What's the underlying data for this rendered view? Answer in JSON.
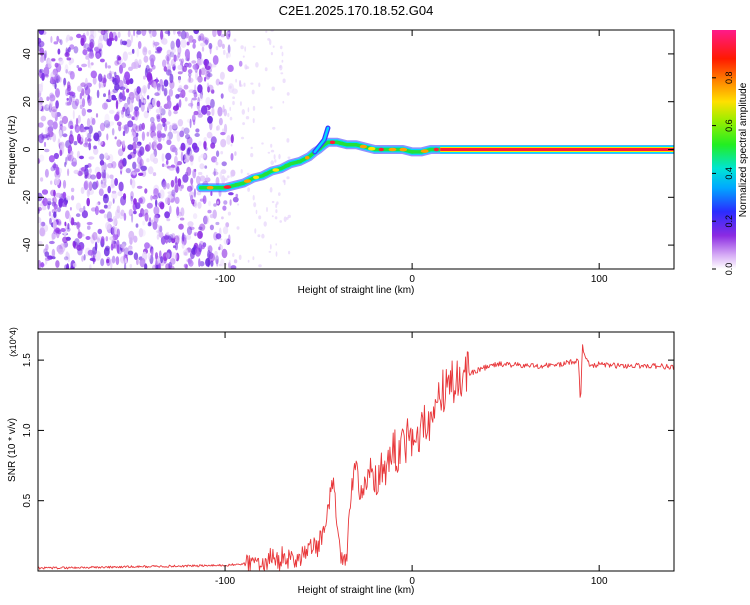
{
  "title": "C2E1.2025.170.18.52.G04",
  "colors": {
    "series": "#e8373a",
    "spectrogram_noise": "#7a2fe6",
    "axis": "#000000"
  },
  "chart_data": [
    {
      "type": "heatmap",
      "title": "C2E1.2025.170.18.52.G04",
      "xlabel": "Height of straight line (km)",
      "ylabel": "Frequency (Hz)",
      "colorbar_label": "Normalized spectral amplitude",
      "colormap": "rainbow (purple-blue-cyan-green-yellow-red-pink)",
      "xlim": [
        -200,
        140
      ],
      "ylim": [
        -50,
        50
      ],
      "clim": [
        0,
        1
      ],
      "xticks": [
        -100,
        0,
        100
      ],
      "yticks": [
        -40,
        -20,
        0,
        20,
        40
      ],
      "colorbar_ticks": [
        "0.0",
        "0.2",
        "0.4",
        "0.6",
        "0.8"
      ],
      "signal_ridge": {
        "x": [
          -113,
          -105,
          -100,
          -95,
          -90,
          -85,
          -80,
          -75,
          -70,
          -65,
          -60,
          -55,
          -52,
          -50,
          -47,
          -45,
          -40,
          -35,
          -30,
          -25,
          -20,
          -15,
          -10,
          -5,
          0,
          5,
          10,
          15,
          50,
          90,
          140
        ],
        "y": [
          -16,
          -16,
          -16,
          -15,
          -14,
          -12,
          -11,
          -9,
          -8,
          -6,
          -5,
          -3,
          -1,
          0,
          2,
          3,
          3,
          2,
          2,
          1,
          0,
          0,
          0,
          0,
          -1,
          -1,
          0,
          0,
          0,
          0,
          0
        ]
      },
      "noise_region_xlim": [
        -200,
        -100
      ]
    },
    {
      "type": "line",
      "xlabel": "Height of straight line (km)",
      "ylabel": "SNR (10 * v/v)",
      "y_multiplier": "(x10^4)",
      "xlim": [
        -200,
        140
      ],
      "ylim": [
        0,
        1.7
      ],
      "xticks": [
        -100,
        0,
        100
      ],
      "yticks": [
        0.5,
        1.0,
        1.5
      ],
      "series": [
        {
          "x": [
            -200,
            -150,
            -100,
            -90,
            -80,
            -75,
            -70,
            -60,
            -55,
            -50,
            -45,
            -42,
            -40,
            -38,
            -36,
            -35,
            -33,
            -31,
            -30,
            -28,
            -25,
            -22,
            -20,
            -15,
            -10,
            -5,
            0,
            5,
            10,
            15,
            20,
            25,
            30,
            35,
            40,
            45,
            50,
            60,
            70,
            80,
            89,
            90,
            91,
            95,
            100,
            110,
            120,
            130,
            140
          ],
          "y": [
            0.02,
            0.03,
            0.04,
            0.05,
            0.08,
            0.12,
            0.08,
            0.11,
            0.14,
            0.18,
            0.4,
            0.7,
            0.3,
            0.08,
            0.02,
            0.08,
            0.5,
            0.7,
            0.85,
            0.55,
            0.6,
            0.75,
            0.6,
            0.75,
            0.85,
            0.9,
            0.95,
            1.0,
            1.1,
            1.2,
            1.3,
            1.35,
            1.4,
            1.43,
            1.45,
            1.47,
            1.47,
            1.46,
            1.46,
            1.47,
            1.5,
            1.15,
            1.6,
            1.45,
            1.47,
            1.46,
            1.46,
            1.46,
            1.45
          ]
        }
      ]
    }
  ]
}
